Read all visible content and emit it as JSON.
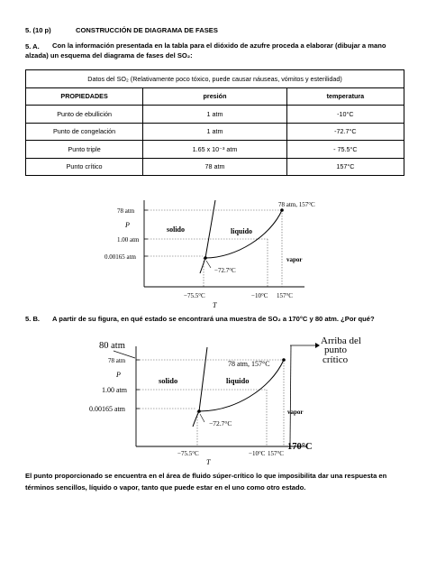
{
  "q5": {
    "number": "5. (10 p)",
    "title": "CONSTRUCCIÓN DE DIAGRAMA DE FASES"
  },
  "qA": {
    "label": "5. A.",
    "text_l1": "Con la información presentada en la tabla para el dióxido de azufre proceda a elaborar (dibujar a mano",
    "text_l2": "alzada) un esquema del diagrama de fases del SO₂:"
  },
  "table": {
    "caption": "Datos del SO₂ (Relativamente poco tóxico, puede causar náuseas, vómitos y esterilidad)",
    "headers": [
      "PROPIEDADES",
      "presión",
      "temperatura"
    ],
    "rows": [
      [
        "Punto de ebullición",
        "1 atm",
        "-10°C"
      ],
      [
        "Punto de congelación",
        "1 atm",
        "-72.7°C"
      ],
      [
        "Punto triple",
        "1.65 x 10⁻³ atm",
        "- 75.5°C"
      ],
      [
        "Punto crítico",
        "78 atm",
        "157°C"
      ]
    ]
  },
  "diagram1": {
    "y_ticks": [
      "78 atm",
      "1.00 atm",
      "0.00165 atm"
    ],
    "y_axis": "P",
    "x_ticks": [
      "−75.5°C",
      "−10°C",
      "157°C"
    ],
    "x_axis": "T",
    "regions": [
      "solido",
      "liquido",
      "vapor"
    ],
    "critical_label": "78 atm, 157°C",
    "triple_label": "−72.7°C"
  },
  "qB": {
    "label": "5. B.",
    "text": "A partir de su figura, en qué estado se encontrará una muestra de SO₂ a 170°C y 80 atm. ¿Por qué?"
  },
  "diagram2": {
    "y_ticks": [
      "78 atm",
      "1.00 atm",
      "0.00165 atm"
    ],
    "y_axis": "P",
    "x_ticks": [
      "−75.5°C",
      "−10°C",
      "157°C"
    ],
    "x_axis": "T",
    "regions": [
      "solido",
      "liquido",
      "vapor"
    ],
    "critical_label": "78 atm, 157°C",
    "triple_label": "−72.7°C",
    "hand_pressure": "80 atm",
    "hand_temperature": "170°C",
    "hand_note_l1": "Arriba del",
    "hand_note_l2": "punto",
    "hand_note_l3": "crítico"
  },
  "answer": {
    "l1": "El punto proporcionado se encuentra en el área de fluido súper-crítico lo que imposibilita dar una respuesta en",
    "l2": "términos sencillos, líquido o vapor,  tanto que puede estar en el uno como otro estado."
  }
}
